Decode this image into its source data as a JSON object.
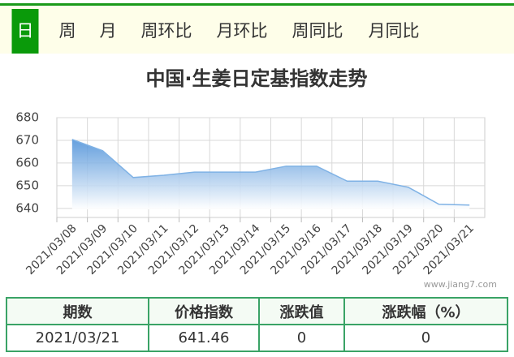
{
  "tabs": [
    "日",
    "周",
    "月",
    "周环比",
    "月环比",
    "周同比",
    "月同比"
  ],
  "active_tab": 0,
  "chart_data": {
    "type": "area",
    "title": "中国·生姜日定基指数走势",
    "categories": [
      "2021/03/08",
      "2021/03/09",
      "2021/03/10",
      "2021/03/11",
      "2021/03/12",
      "2021/03/13",
      "2021/03/14",
      "2021/03/15",
      "2021/03/16",
      "2021/03/17",
      "2021/03/18",
      "2021/03/19",
      "2021/03/20",
      "2021/03/21"
    ],
    "values": [
      670.4,
      665.4,
      653.6,
      654.6,
      656,
      656,
      656,
      658.6,
      658.6,
      652,
      652,
      649.3,
      641.8,
      641.46
    ],
    "color": "#7fb2e5",
    "ylim": [
      636,
      680
    ],
    "yticks": [
      640,
      650,
      660,
      670,
      680
    ],
    "grid": true,
    "watermark": "www.jiang7.com"
  },
  "table": {
    "header": [
      "期数",
      "价格指数",
      "涨跌值",
      "涨跌幅（%）"
    ],
    "rows": [
      [
        "2021/03/21",
        "641.46",
        "0",
        "0"
      ]
    ]
  }
}
